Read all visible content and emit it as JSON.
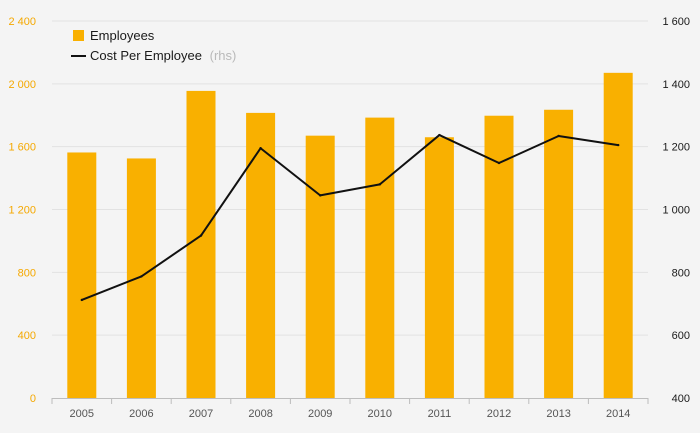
{
  "chart_data": {
    "type": "bar",
    "categories": [
      "2005",
      "2006",
      "2007",
      "2008",
      "2009",
      "2010",
      "2011",
      "2012",
      "2013",
      "2014"
    ],
    "series": [
      {
        "name": "Employees",
        "type": "bar",
        "axis": "left",
        "color": "#f9b000",
        "values": [
          1563,
          1525,
          1955,
          1815,
          1670,
          1785,
          1660,
          1797,
          1835,
          2070
        ]
      },
      {
        "name": "Cost Per Employee",
        "name_suffix": "(rhs)",
        "type": "line",
        "axis": "right",
        "color": "#111111",
        "values": [
          712,
          787,
          917,
          1195,
          1045,
          1080,
          1237,
          1148,
          1234,
          1205
        ]
      }
    ],
    "y_left": {
      "range": [
        0,
        2400
      ],
      "ticks": [
        0,
        400,
        800,
        1200,
        1600,
        2000,
        2400
      ],
      "tick_labels": [
        "0",
        "400",
        "800",
        "1 200",
        "1 600",
        "2 000",
        "2 400"
      ],
      "color": "#f5a800"
    },
    "y_right": {
      "range": [
        400,
        1600
      ],
      "ticks": [
        400,
        600,
        800,
        1000,
        1200,
        1400,
        1600
      ],
      "tick_labels": [
        "400",
        "600",
        "800",
        "1 000",
        "1 200",
        "1 400",
        "1 600"
      ],
      "color": "#1a1a1a"
    },
    "grid": true,
    "legend_position": "top-left"
  }
}
